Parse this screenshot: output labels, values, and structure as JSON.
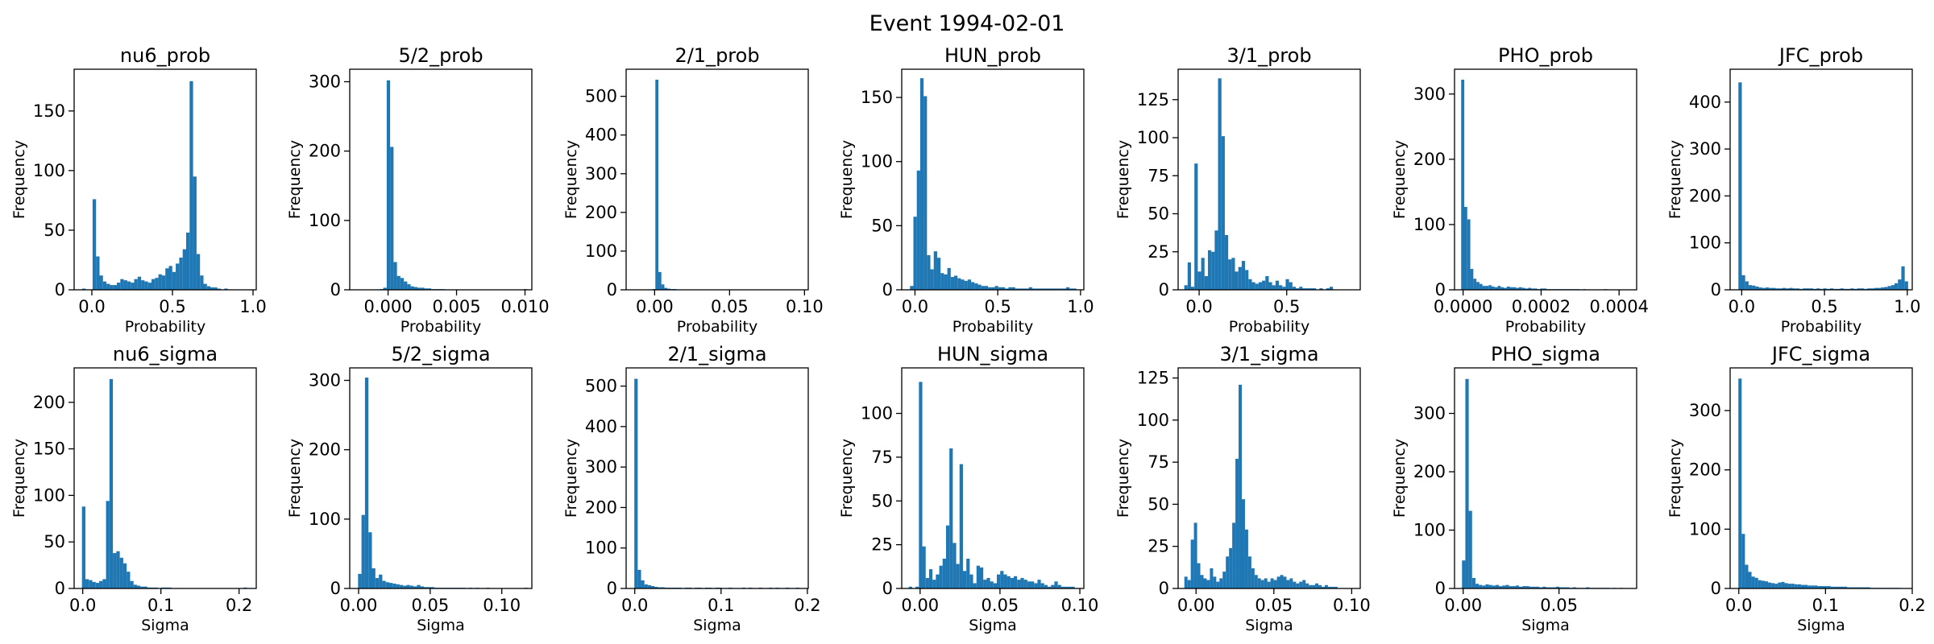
{
  "figure": {
    "title": "Event 1994-02-01"
  },
  "chart_data": [
    {
      "type": "bar",
      "title": "nu6_prob",
      "xlabel": "Probability",
      "ylabel": "Frequency",
      "xlim": [
        -0.11,
        1.02
      ],
      "ylim": [
        0,
        185
      ],
      "xticks": [
        {
          "v": 0.0,
          "label": "0.0"
        },
        {
          "v": 0.5,
          "label": "0.5"
        },
        {
          "v": 1.0,
          "label": "1.0"
        }
      ],
      "yticks": [
        {
          "v": 0,
          "label": "0"
        },
        {
          "v": 50,
          "label": "50"
        },
        {
          "v": 100,
          "label": "100"
        },
        {
          "v": 150,
          "label": "150"
        }
      ],
      "bin_start": -0.06,
      "bin_width": 0.0215,
      "counts": [
        1,
        0,
        0,
        76,
        28,
        12,
        7,
        5,
        4,
        4,
        6,
        9,
        8,
        7,
        6,
        9,
        11,
        8,
        7,
        6,
        9,
        10,
        13,
        12,
        18,
        20,
        15,
        22,
        27,
        34,
        48,
        175,
        95,
        30,
        12,
        5,
        3,
        2,
        2,
        1,
        0,
        1,
        0,
        0,
        0
      ]
    },
    {
      "type": "bar",
      "title": "5/2_prob",
      "xlabel": "Probability",
      "ylabel": "Frequency",
      "xlim": [
        -0.0028,
        0.0105
      ],
      "ylim": [
        0,
        318
      ],
      "xticks": [
        {
          "v": 0.0,
          "label": "0.000"
        },
        {
          "v": 0.005,
          "label": "0.005"
        },
        {
          "v": 0.01,
          "label": "0.010"
        }
      ],
      "yticks": [
        {
          "v": 0,
          "label": "0"
        },
        {
          "v": 100,
          "label": "100"
        },
        {
          "v": 200,
          "label": "200"
        },
        {
          "v": 300,
          "label": "300"
        }
      ],
      "bin_start": -0.0006,
      "bin_width": 0.00025,
      "counts": [
        1,
        3,
        302,
        206,
        40,
        20,
        17,
        12,
        8,
        5,
        4,
        3,
        3,
        2,
        2,
        1,
        1,
        1,
        1,
        0,
        0,
        0,
        0,
        0,
        0,
        0,
        0,
        0,
        0,
        0,
        0,
        0,
        0,
        0,
        0,
        0,
        0,
        0,
        0,
        0,
        0,
        0,
        1
      ]
    },
    {
      "type": "bar",
      "title": "2/1_prob",
      "xlabel": "Probability",
      "ylabel": "Frequency",
      "xlim": [
        -0.019,
        0.1025
      ],
      "ylim": [
        0,
        570
      ],
      "xticks": [
        {
          "v": 0.0,
          "label": "0.00"
        },
        {
          "v": 0.05,
          "label": "0.05"
        },
        {
          "v": 0.1,
          "label": "0.10"
        }
      ],
      "yticks": [
        {
          "v": 0,
          "label": "0"
        },
        {
          "v": 100,
          "label": "100"
        },
        {
          "v": 200,
          "label": "200"
        },
        {
          "v": 300,
          "label": "300"
        },
        {
          "v": 400,
          "label": "400"
        },
        {
          "v": 500,
          "label": "500"
        }
      ],
      "bin_start": -0.0015,
      "bin_width": 0.002,
      "counts": [
        2,
        543,
        46,
        14,
        5,
        3,
        2,
        2,
        1,
        1,
        1,
        1,
        1,
        1,
        0,
        1,
        1,
        0,
        1,
        0,
        1,
        0,
        1,
        0,
        1,
        0,
        0,
        1,
        0,
        0,
        1,
        0,
        0,
        0,
        1,
        0,
        0,
        1
      ]
    },
    {
      "type": "bar",
      "title": "HUN_prob",
      "xlabel": "Probability",
      "ylabel": "Frequency",
      "xlim": [
        -0.08,
        1.02
      ],
      "ylim": [
        0,
        172
      ],
      "xticks": [
        {
          "v": 0.0,
          "label": "0.0"
        },
        {
          "v": 0.5,
          "label": "0.5"
        },
        {
          "v": 1.0,
          "label": "1.0"
        }
      ],
      "yticks": [
        {
          "v": 0,
          "label": "0"
        },
        {
          "v": 50,
          "label": "50"
        },
        {
          "v": 100,
          "label": "100"
        },
        {
          "v": 150,
          "label": "150"
        }
      ],
      "bin_start": -0.03,
      "bin_width": 0.0205,
      "counts": [
        3,
        57,
        93,
        165,
        151,
        27,
        16,
        30,
        25,
        13,
        12,
        17,
        10,
        11,
        9,
        8,
        7,
        8,
        6,
        5,
        4,
        3,
        3,
        2,
        2,
        3,
        2,
        2,
        1,
        2,
        2,
        1,
        1,
        1,
        1,
        2,
        1,
        1,
        1,
        1,
        1,
        1,
        1,
        1,
        1,
        1,
        2,
        1,
        1
      ]
    },
    {
      "type": "bar",
      "title": "3/1_prob",
      "xlabel": "Probability",
      "ylabel": "Frequency",
      "xlim": [
        -0.12,
        0.92
      ],
      "ylim": [
        0,
        145
      ],
      "xticks": [
        {
          "v": 0.0,
          "label": "0.0"
        },
        {
          "v": 0.5,
          "label": "0.5"
        }
      ],
      "yticks": [
        {
          "v": 0,
          "label": "0"
        },
        {
          "v": 25,
          "label": "25"
        },
        {
          "v": 50,
          "label": "50"
        },
        {
          "v": 75,
          "label": "75"
        },
        {
          "v": 100,
          "label": "100"
        },
        {
          "v": 125,
          "label": "125"
        }
      ],
      "bin_start": -0.085,
      "bin_width": 0.0193,
      "counts": [
        3,
        18,
        2,
        83,
        12,
        21,
        9,
        26,
        25,
        39,
        139,
        101,
        36,
        20,
        21,
        12,
        15,
        19,
        13,
        7,
        5,
        4,
        5,
        6,
        9,
        5,
        3,
        6,
        3,
        2,
        7,
        5,
        2,
        1,
        2,
        1,
        1,
        1,
        1,
        0,
        1,
        0,
        1,
        2
      ]
    },
    {
      "type": "bar",
      "title": "PHO_prob",
      "xlabel": "Probability",
      "ylabel": "Frequency",
      "xlim": [
        -2.2e-05,
        0.000445
      ],
      "ylim": [
        0,
        338
      ],
      "xticks": [
        {
          "v": 0.0,
          "label": "0.0000"
        },
        {
          "v": 0.0002,
          "label": "0.0002"
        },
        {
          "v": 0.0004,
          "label": "0.0004"
        }
      ],
      "yticks": [
        {
          "v": 0,
          "label": "0"
        },
        {
          "v": 100,
          "label": "100"
        },
        {
          "v": 200,
          "label": "200"
        },
        {
          "v": 300,
          "label": "300"
        }
      ],
      "bin_start": -5e-06,
      "bin_width": 7.8e-06,
      "counts": [
        322,
        127,
        108,
        32,
        17,
        12,
        9,
        6,
        6,
        7,
        5,
        4,
        6,
        4,
        3,
        5,
        4,
        4,
        3,
        4,
        3,
        2,
        3,
        2,
        2,
        1,
        2,
        2,
        1,
        1,
        1,
        1,
        1,
        1,
        1,
        1,
        1,
        1,
        1,
        0,
        1,
        0,
        0,
        0,
        0,
        0,
        0,
        1
      ]
    },
    {
      "type": "bar",
      "title": "JFC_prob",
      "xlabel": "Probability",
      "ylabel": "Frequency",
      "xlim": [
        -0.07,
        1.03
      ],
      "ylim": [
        0,
        470
      ],
      "xticks": [
        {
          "v": 0.0,
          "label": "0.0"
        },
        {
          "v": 0.5,
          "label": "0.5"
        },
        {
          "v": 1.0,
          "label": "1.0"
        }
      ],
      "yticks": [
        {
          "v": 0,
          "label": "0"
        },
        {
          "v": 100,
          "label": "100"
        },
        {
          "v": 200,
          "label": "200"
        },
        {
          "v": 300,
          "label": "300"
        },
        {
          "v": 400,
          "label": "400"
        }
      ],
      "bin_start": -0.02,
      "bin_width": 0.0205,
      "counts": [
        442,
        31,
        18,
        10,
        9,
        7,
        5,
        4,
        5,
        4,
        4,
        3,
        3,
        4,
        3,
        4,
        3,
        3,
        2,
        3,
        3,
        3,
        2,
        3,
        2,
        3,
        2,
        3,
        2,
        2,
        3,
        2,
        2,
        3,
        2,
        3,
        3,
        2,
        3,
        3,
        4,
        4,
        5,
        6,
        8,
        10,
        14,
        22,
        50,
        18
      ]
    },
    {
      "type": "bar",
      "title": "nu6_sigma",
      "xlabel": "Sigma",
      "ylabel": "Frequency",
      "xlim": [
        -0.011,
        0.222
      ],
      "ylim": [
        0,
        237
      ],
      "xticks": [
        {
          "v": 0.0,
          "label": "0.0"
        },
        {
          "v": 0.1,
          "label": "0.1"
        },
        {
          "v": 0.2,
          "label": "0.2"
        }
      ],
      "yticks": [
        {
          "v": 0,
          "label": "0"
        },
        {
          "v": 50,
          "label": "50"
        },
        {
          "v": 100,
          "label": "100"
        },
        {
          "v": 150,
          "label": "150"
        },
        {
          "v": 200,
          "label": "200"
        }
      ],
      "bin_start": -0.001,
      "bin_width": 0.0044,
      "counts": [
        88,
        10,
        9,
        7,
        6,
        8,
        10,
        94,
        225,
        38,
        40,
        33,
        27,
        18,
        8,
        4,
        3,
        2,
        2,
        1,
        1,
        1,
        0,
        1,
        1,
        1,
        0,
        0,
        0,
        0,
        0,
        0,
        0,
        0,
        0,
        0,
        0,
        0,
        0,
        0,
        0,
        0,
        0,
        0,
        0,
        0,
        0,
        1
      ]
    },
    {
      "type": "bar",
      "title": "5/2_sigma",
      "xlabel": "Sigma",
      "ylabel": "Frequency",
      "xlim": [
        -0.0062,
        0.121
      ],
      "ylim": [
        0,
        318
      ],
      "xticks": [
        {
          "v": 0.0,
          "label": "0.00"
        },
        {
          "v": 0.05,
          "label": "0.05"
        },
        {
          "v": 0.1,
          "label": "0.10"
        }
      ],
      "yticks": [
        {
          "v": 0,
          "label": "0"
        },
        {
          "v": 100,
          "label": "100"
        },
        {
          "v": 200,
          "label": "200"
        },
        {
          "v": 300,
          "label": "300"
        }
      ],
      "bin_start": -0.0004,
      "bin_width": 0.00242,
      "counts": [
        21,
        106,
        304,
        81,
        29,
        15,
        20,
        11,
        9,
        8,
        7,
        6,
        5,
        4,
        5,
        4,
        3,
        5,
        3,
        2,
        2,
        2,
        1,
        1,
        1,
        1,
        1,
        1,
        1,
        1,
        1,
        0,
        1,
        0,
        1,
        0,
        0,
        1,
        0,
        0,
        0,
        0,
        0,
        0,
        0,
        0,
        0,
        0,
        1
      ]
    },
    {
      "type": "bar",
      "title": "2/1_sigma",
      "xlabel": "Sigma",
      "ylabel": "Frequency",
      "xlim": [
        -0.01,
        0.201
      ],
      "ylim": [
        0,
        545
      ],
      "xticks": [
        {
          "v": 0.0,
          "label": "0.0"
        },
        {
          "v": 0.1,
          "label": "0.1"
        },
        {
          "v": 0.2,
          "label": "0.2"
        }
      ],
      "yticks": [
        {
          "v": 0,
          "label": "0"
        },
        {
          "v": 100,
          "label": "100"
        },
        {
          "v": 200,
          "label": "200"
        },
        {
          "v": 300,
          "label": "300"
        },
        {
          "v": 400,
          "label": "400"
        },
        {
          "v": 500,
          "label": "500"
        }
      ],
      "bin_start": -0.0005,
      "bin_width": 0.0039,
      "counts": [
        518,
        46,
        20,
        10,
        8,
        6,
        4,
        3,
        3,
        2,
        2,
        2,
        2,
        2,
        1,
        2,
        2,
        1,
        2,
        2,
        1,
        2,
        2,
        1,
        2,
        2,
        1,
        1,
        2,
        1,
        1,
        1,
        2,
        1,
        2,
        1,
        1,
        2,
        1,
        1,
        2,
        1,
        2,
        1,
        1,
        2,
        1,
        1,
        2
      ]
    },
    {
      "type": "bar",
      "title": "HUN_sigma",
      "xlabel": "Sigma",
      "ylabel": "Frequency",
      "xlim": [
        -0.0115,
        0.1025
      ],
      "ylim": [
        0,
        126
      ],
      "xticks": [
        {
          "v": 0.0,
          "label": "0.00"
        },
        {
          "v": 0.05,
          "label": "0.05"
        },
        {
          "v": 0.1,
          "label": "0.10"
        }
      ],
      "yticks": [
        {
          "v": 0,
          "label": "0"
        },
        {
          "v": 25,
          "label": "25"
        },
        {
          "v": 50,
          "label": "50"
        },
        {
          "v": 75,
          "label": "75"
        },
        {
          "v": 100,
          "label": "100"
        }
      ],
      "bin_start": -0.0071,
      "bin_width": 0.00212,
      "counts": [
        1,
        0,
        1,
        118,
        24,
        6,
        11,
        5,
        8,
        13,
        17,
        36,
        80,
        26,
        14,
        71,
        10,
        17,
        8,
        3,
        13,
        12,
        5,
        6,
        4,
        3,
        8,
        10,
        8,
        7,
        6,
        7,
        5,
        6,
        5,
        4,
        4,
        3,
        5,
        3,
        2,
        1,
        2,
        4,
        2,
        1,
        1,
        1,
        1
      ]
    },
    {
      "type": "bar",
      "title": "3/1_sigma",
      "xlabel": "Sigma",
      "ylabel": "Frequency",
      "xlim": [
        -0.0115,
        0.1055
      ],
      "ylim": [
        0,
        131
      ],
      "xticks": [
        {
          "v": 0.0,
          "label": "0.00"
        },
        {
          "v": 0.05,
          "label": "0.05"
        },
        {
          "v": 0.1,
          "label": "0.10"
        }
      ],
      "yticks": [
        {
          "v": 0,
          "label": "0"
        },
        {
          "v": 25,
          "label": "25"
        },
        {
          "v": 50,
          "label": "50"
        },
        {
          "v": 75,
          "label": "75"
        },
        {
          "v": 100,
          "label": "100"
        },
        {
          "v": 125,
          "label": "125"
        }
      ],
      "bin_start": -0.0075,
      "bin_width": 0.00205,
      "counts": [
        7,
        5,
        29,
        39,
        15,
        8,
        6,
        5,
        12,
        7,
        4,
        6,
        10,
        19,
        24,
        39,
        77,
        121,
        53,
        35,
        19,
        12,
        8,
        6,
        5,
        6,
        4,
        6,
        5,
        7,
        8,
        7,
        5,
        6,
        4,
        3,
        4,
        5,
        3,
        2,
        2,
        3,
        2,
        1,
        2,
        1,
        1,
        1
      ]
    },
    {
      "type": "bar",
      "title": "PHO_sigma",
      "xlabel": "Sigma",
      "ylabel": "Frequency",
      "xlim": [
        -0.0045,
        0.0905
      ],
      "ylim": [
        0,
        378
      ],
      "xticks": [
        {
          "v": 0.0,
          "label": "0.00"
        },
        {
          "v": 0.05,
          "label": "0.05"
        }
      ],
      "yticks": [
        {
          "v": 0,
          "label": "0"
        },
        {
          "v": 100,
          "label": "100"
        },
        {
          "v": 200,
          "label": "200"
        },
        {
          "v": 300,
          "label": "300"
        }
      ],
      "bin_start": -0.0006,
      "bin_width": 0.00175,
      "counts": [
        48,
        359,
        133,
        18,
        8,
        6,
        5,
        7,
        6,
        5,
        6,
        4,
        5,
        6,
        4,
        4,
        5,
        3,
        4,
        4,
        3,
        3,
        3,
        2,
        3,
        2,
        2,
        2,
        3,
        2,
        2,
        2,
        1,
        2,
        1,
        1,
        1,
        2,
        1,
        1,
        1,
        1,
        1,
        1,
        0,
        1,
        0,
        1
      ]
    },
    {
      "type": "bar",
      "title": "JFC_sigma",
      "xlabel": "Sigma",
      "ylabel": "Frequency",
      "xlim": [
        -0.01,
        0.2
      ],
      "ylim": [
        0,
        372
      ],
      "xticks": [
        {
          "v": 0.0,
          "label": "0.0"
        },
        {
          "v": 0.1,
          "label": "0.1"
        },
        {
          "v": 0.2,
          "label": "0.2"
        }
      ],
      "yticks": [
        {
          "v": 0,
          "label": "0"
        },
        {
          "v": 100,
          "label": "100"
        },
        {
          "v": 200,
          "label": "200"
        },
        {
          "v": 300,
          "label": "300"
        }
      ],
      "bin_start": -0.0005,
      "bin_width": 0.0038,
      "counts": [
        354,
        92,
        40,
        28,
        20,
        18,
        14,
        13,
        12,
        10,
        9,
        8,
        10,
        11,
        9,
        8,
        8,
        7,
        7,
        6,
        6,
        5,
        5,
        5,
        4,
        4,
        4,
        4,
        3,
        3,
        3,
        3,
        3,
        2,
        2,
        2,
        2,
        2,
        2,
        2,
        1,
        1,
        1,
        1,
        1,
        1,
        1,
        1,
        1
      ]
    }
  ]
}
